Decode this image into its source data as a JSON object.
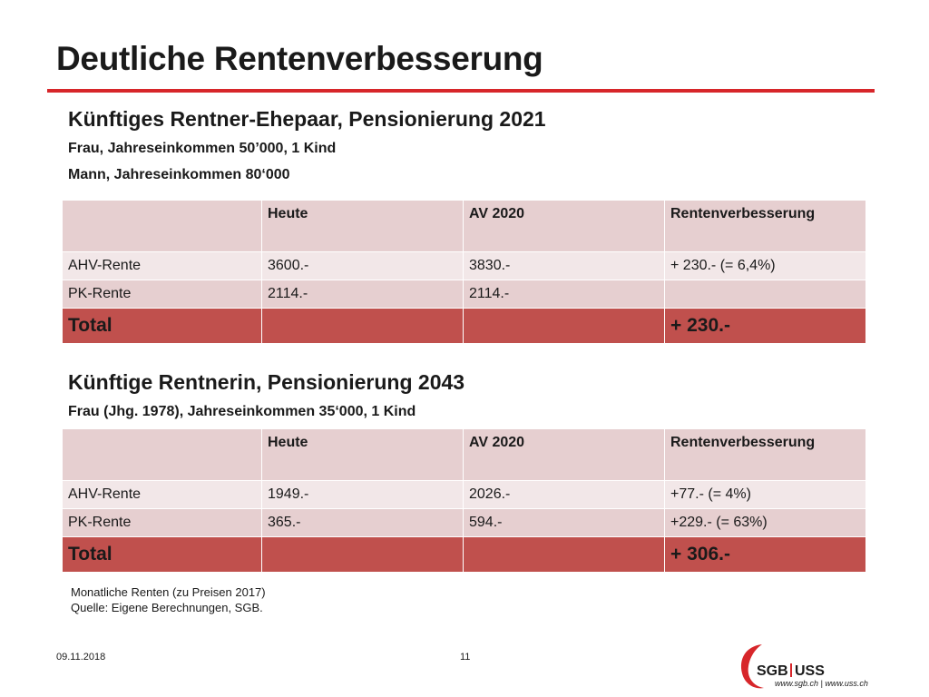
{
  "slide": {
    "title": "Deutliche Rentenverbesserung",
    "section1": {
      "heading": "Künftiges Rentner-Ehepaar, Pensionierung 2021",
      "line1": "Frau, Jahreseinkommen 50’000, 1 Kind",
      "line2": "Mann, Jahreseinkommen 80‘000"
    },
    "table1": {
      "header": [
        "",
        "Heute",
        "AV 2020",
        "Rentenverbesserung"
      ],
      "rows": [
        [
          "AHV-Rente",
          "3600.-",
          "3830.-",
          "+ 230.- (= 6,4%)"
        ],
        [
          "PK-Rente",
          "2114.-",
          "2114.-",
          ""
        ]
      ],
      "total": [
        "Total",
        "",
        "",
        "+ 230.-"
      ]
    },
    "section2": {
      "heading": "Künftige Rentnerin, Pensionierung 2043",
      "line1": "Frau (Jhg. 1978), Jahreseinkommen 35‘000, 1 Kind"
    },
    "table2": {
      "header": [
        "",
        "Heute",
        "AV 2020",
        "Rentenverbesserung"
      ],
      "rows": [
        [
          "AHV-Rente",
          "1949.-",
          "2026.-",
          "+77.- (= 4%)"
        ],
        [
          "PK-Rente",
          "365.-",
          "594.-",
          "+229.- (= 63%)"
        ]
      ],
      "total": [
        "Total",
        "",
        "",
        "+ 306.-"
      ]
    },
    "footnote1": "Monatliche Renten (zu Preisen 2017)",
    "footnote2": "Quelle: Eigene  Berechnungen, SGB.",
    "date": "09.11.2018",
    "page_number": "11",
    "logo": {
      "text_sgb": "SGB",
      "text_uss": "USS",
      "url": "www.sgb.ch | www.uss.ch"
    }
  },
  "colors": {
    "accent_red": "#d7262a",
    "header_fill": "#e6cfd0",
    "row_light": "#f2e7e8",
    "total_fill": "#c0504d"
  }
}
